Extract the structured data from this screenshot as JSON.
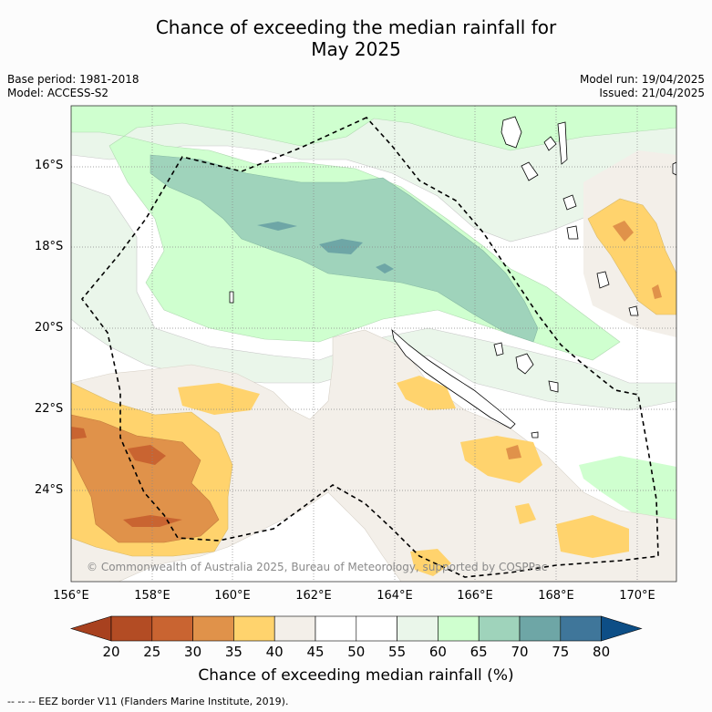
{
  "title_line1": "Chance of exceeding the median rainfall for",
  "title_line2": "May 2025",
  "meta_left": {
    "base_period": "Base period: 1981-2018",
    "model": "Model: ACCESS-S2"
  },
  "meta_right": {
    "model_run": "Model run: 19/04/2025",
    "issued": "Issued: 21/04/2025"
  },
  "map": {
    "lat_labels": [
      "16°S",
      "18°S",
      "20°S",
      "22°S",
      "24°S"
    ],
    "lon_labels": [
      "156°E",
      "158°E",
      "160°E",
      "162°E",
      "164°E",
      "166°E",
      "168°E",
      "170°E"
    ],
    "copyright": "© Commonwealth of Australia 2025, Bureau of Meteorology, supported by COSPPac"
  },
  "colorbar": {
    "ticks": [
      "20",
      "25",
      "30",
      "35",
      "40",
      "45",
      "50",
      "55",
      "60",
      "65",
      "70",
      "75",
      "80"
    ],
    "colors": [
      "#a8411f",
      "#b34c24",
      "#c96431",
      "#e0924a",
      "#ffd36d",
      "#f3efe9",
      "#ffffff",
      "#ffffff",
      "#eaf6ea",
      "#cfffcf",
      "#9fd3bb",
      "#6ea6a6",
      "#3f769a",
      "#0d4e86"
    ],
    "label": "Chance of exceeding median rainfall (%)"
  },
  "footer": "--  --  -- EEZ border V11 (Flanders Marine Institute, 2019)."
}
